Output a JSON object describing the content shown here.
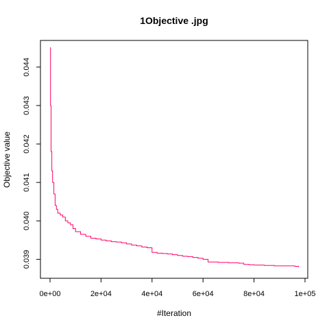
{
  "chart_data": {
    "type": "line",
    "title": "1Objective .jpg",
    "xlabel": "#Iteration",
    "ylabel": "Objective value",
    "xlim": [
      0,
      100000
    ],
    "ylim": [
      0.03865,
      0.04455
    ],
    "grid": false,
    "legend": "none",
    "x_ticks": [
      0,
      20000,
      40000,
      60000,
      80000,
      100000
    ],
    "x_tick_labels": [
      "0e+00",
      "2e+04",
      "4e+04",
      "6e+04",
      "8e+04",
      "1e+05"
    ],
    "y_ticks": [
      0.039,
      0.04,
      0.041,
      0.042,
      0.043,
      0.044
    ],
    "y_tick_labels": [
      "0.039",
      "0.040",
      "0.041",
      "0.042",
      "0.043",
      "0.044"
    ],
    "series": [
      {
        "color": "#ff0066",
        "x": [
          0,
          200,
          400,
          700,
          1000,
          1500,
          2000,
          2500,
          3000,
          4000,
          5000,
          6000,
          7000,
          8000,
          9000,
          10000,
          12000,
          14000,
          16000,
          18000,
          20000,
          22000,
          24000,
          26000,
          28000,
          30000,
          32000,
          34000,
          36000,
          38000,
          40000,
          42000,
          44000,
          46000,
          48000,
          50000,
          52000,
          54000,
          56000,
          58000,
          60000,
          62000,
          66000,
          70000,
          74000,
          76000,
          78000,
          80000,
          84000,
          88000,
          92000,
          96000,
          97500
        ],
        "y": [
          0.0445,
          0.043,
          0.0418,
          0.0413,
          0.041,
          0.0407,
          0.0404,
          0.0403,
          0.0402,
          0.04015,
          0.0401,
          0.04,
          0.03995,
          0.0399,
          0.0398,
          0.03972,
          0.03965,
          0.0396,
          0.03955,
          0.03953,
          0.0395,
          0.03948,
          0.03946,
          0.03945,
          0.03943,
          0.0394,
          0.03937,
          0.03935,
          0.03932,
          0.0393,
          0.03918,
          0.03916,
          0.03915,
          0.03914,
          0.03912,
          0.0391,
          0.03908,
          0.03907,
          0.03905,
          0.03903,
          0.039,
          0.03893,
          0.03892,
          0.03891,
          0.0389,
          0.03887,
          0.03886,
          0.03885,
          0.03884,
          0.03883,
          0.03883,
          0.03882,
          0.0388
        ]
      }
    ]
  }
}
